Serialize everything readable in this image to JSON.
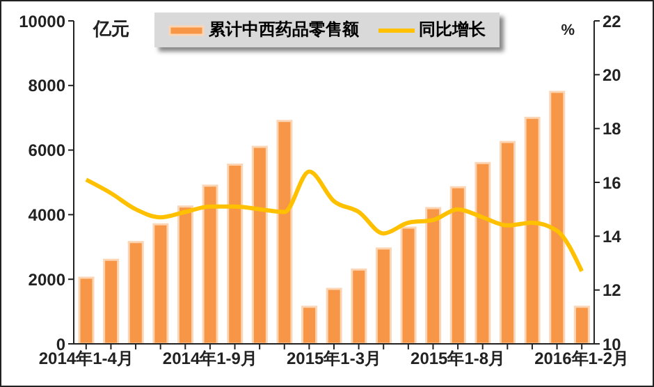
{
  "chart_data": {
    "type": "bar",
    "ylabel": "亿元",
    "y2label": "%",
    "categories": [
      "2014年1-4月",
      null,
      null,
      null,
      null,
      "2014年1-9月",
      null,
      null,
      null,
      null,
      "2015年1-3月",
      null,
      null,
      null,
      null,
      "2015年1-8月",
      null,
      null,
      null,
      null,
      "2016年1-2月"
    ],
    "series": [
      {
        "name": "累计中西药品零售额",
        "color": "#f79646",
        "values": [
          2050,
          2600,
          3150,
          3700,
          4250,
          4900,
          5550,
          6100,
          6900,
          1150,
          1700,
          2300,
          2950,
          3600,
          4200,
          4850,
          5600,
          6250,
          7000,
          7800,
          1150
        ]
      },
      {
        "name": "同比增长",
        "type": "line",
        "axis": "y2",
        "color": "#ffc000",
        "values": [
          16.1,
          15.6,
          15.0,
          14.7,
          14.9,
          15.1,
          15.1,
          15.0,
          14.9,
          16.4,
          15.3,
          14.9,
          14.1,
          14.5,
          14.6,
          15.0,
          14.7,
          14.4,
          14.5,
          14.2,
          12.7
        ]
      }
    ],
    "ylim": [
      0,
      10000
    ],
    "yticks": [
      0,
      2000,
      4000,
      6000,
      8000,
      10000
    ],
    "y2lim": [
      10,
      22
    ],
    "y2ticks": [
      10,
      12,
      14,
      16,
      18,
      20,
      22
    ],
    "grid": false,
    "legend": "top",
    "marker": "none",
    "line_style": "solid"
  }
}
